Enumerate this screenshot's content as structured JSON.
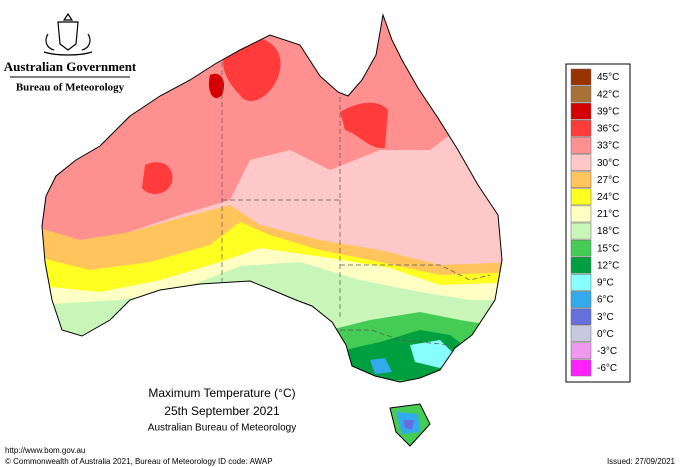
{
  "header": {
    "government": "Australian Government",
    "agency": "Bureau of Meteorology"
  },
  "map": {
    "title": "Maximum Temperature (°C)",
    "date": "25th September 2021",
    "source": "Australian Bureau of Meteorology"
  },
  "legend": {
    "items": [
      {
        "label": "45°C",
        "color": "#993300"
      },
      {
        "label": "42°C",
        "color": "#a8713a"
      },
      {
        "label": "39°C",
        "color": "#d40000"
      },
      {
        "label": "36°C",
        "color": "#ff3b3b"
      },
      {
        "label": "33°C",
        "color": "#ff9090"
      },
      {
        "label": "30°C",
        "color": "#ffc8c8"
      },
      {
        "label": "27°C",
        "color": "#ffc45c"
      },
      {
        "label": "24°C",
        "color": "#ffff22"
      },
      {
        "label": "21°C",
        "color": "#ffffc4"
      },
      {
        "label": "18°C",
        "color": "#c8f5b8"
      },
      {
        "label": "15°C",
        "color": "#44cc55"
      },
      {
        "label": "12°C",
        "color": "#00a040"
      },
      {
        "label": "9°C",
        "color": "#88ffff"
      },
      {
        "label": "6°C",
        "color": "#33aaee"
      },
      {
        "label": "3°C",
        "color": "#6670dd"
      },
      {
        "label": "0°C",
        "color": "#c8c8e0"
      },
      {
        "label": "-3°C",
        "color": "#ee99ee"
      },
      {
        "label": "-6°C",
        "color": "#ff22ff"
      }
    ]
  },
  "footer": {
    "url": "http://www.bom.gov.au",
    "copyright": "© Commonwealth of Australia 2021, Bureau of Meteorology",
    "id_code": "ID code: AWAP",
    "issued": "Issued: 27/09/2021"
  }
}
